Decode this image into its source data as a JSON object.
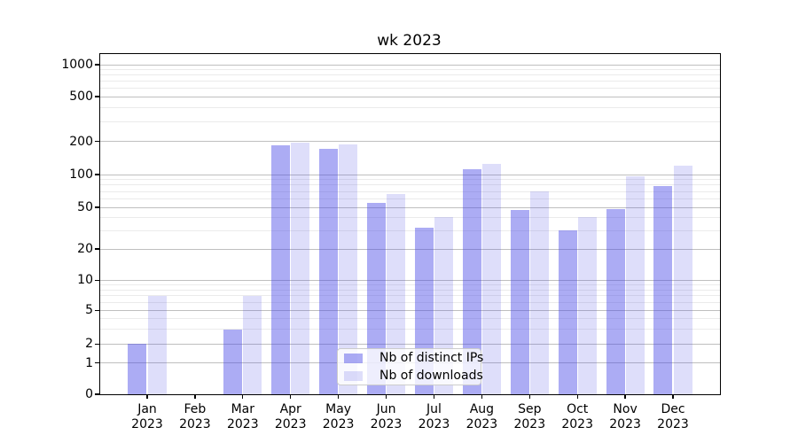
{
  "title": "wk 2023",
  "chart_data": {
    "type": "bar",
    "title": "wk 2023",
    "xlabel": "",
    "ylabel": "",
    "yscale": "symlog (log above 1, linear 0 to 1)",
    "grid": "horizontal major and minor gridlines",
    "legend_position": "lower center inside plot",
    "categories": [
      "Jan 2023",
      "Feb 2023",
      "Mar 2023",
      "Apr 2023",
      "May 2023",
      "Jun 2023",
      "Jul 2023",
      "Aug 2023",
      "Sep 2023",
      "Oct 2023",
      "Nov 2023",
      "Dec 2023"
    ],
    "series": [
      {
        "name": "Nb of distinct IPs",
        "values": [
          2,
          0,
          3,
          184,
          172,
          55,
          32,
          112,
          47,
          30,
          48,
          78
        ]
      },
      {
        "name": "Nb of downloads",
        "values": [
          7,
          0,
          7,
          195,
          188,
          66,
          40,
          126,
          70,
          40,
          97,
          120
        ]
      }
    ],
    "yticks": [
      "1000",
      "500",
      "200",
      "100",
      "50",
      "20",
      "10",
      "5",
      "2",
      "1",
      "0"
    ],
    "ylim": [
      0,
      1300
    ]
  },
  "colors": {
    "bar_distinct_ips": "rgba(70,70,230,0.45)",
    "bar_downloads": "rgba(70,70,230,0.18)",
    "grid_major": "#bfbfbf",
    "grid_minor": "#ebebeb",
    "spine": "#000000",
    "text": "#000000",
    "legend_border": "#cccccc",
    "legend_background": "rgba(255,255,255,0.8)"
  }
}
